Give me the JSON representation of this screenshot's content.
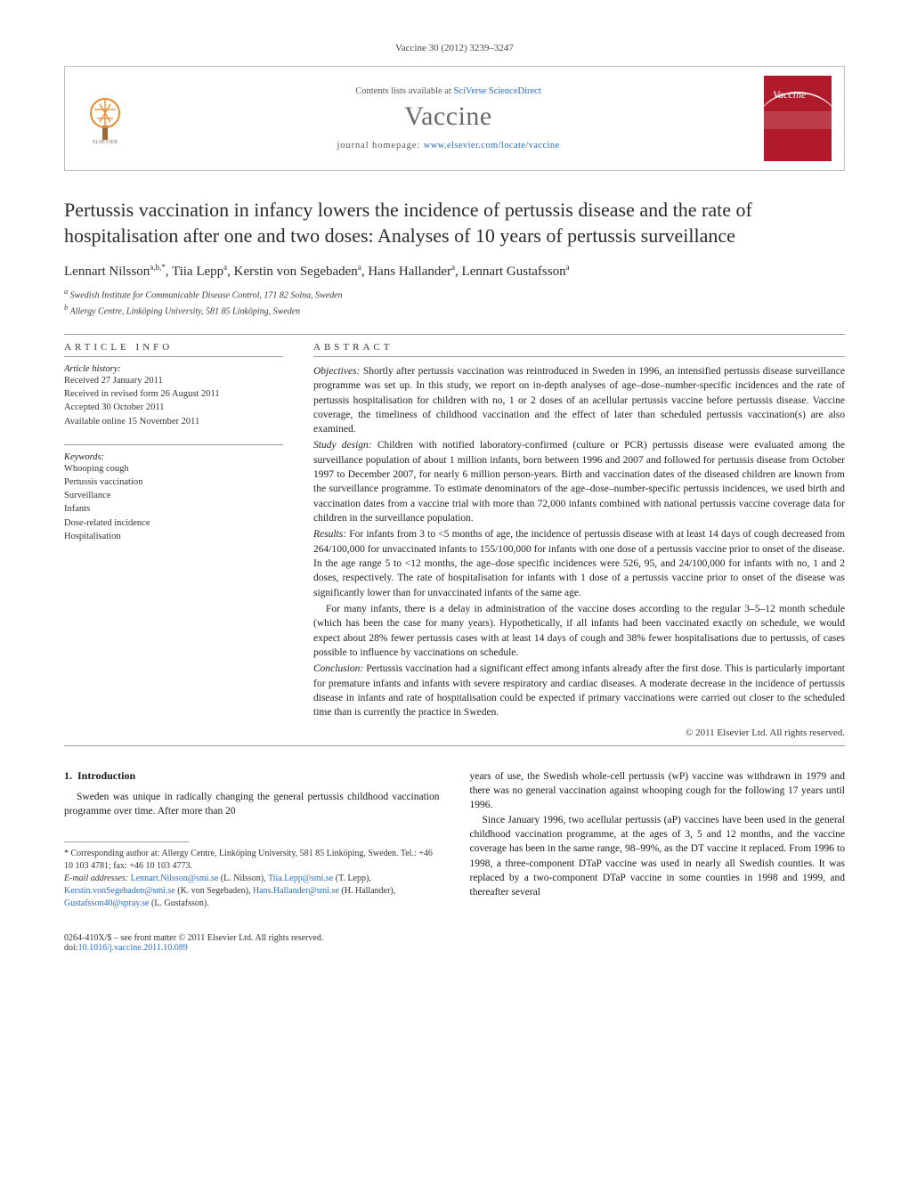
{
  "running_head": "Vaccine 30 (2012) 3239–3247",
  "masthead": {
    "contents_prefix": "Contents lists available at ",
    "contents_link": "SciVerse ScienceDirect",
    "journal": "Vaccine",
    "homepage_prefix": "journal homepage: ",
    "homepage_url": "www.elsevier.com/locate/vaccine",
    "publisher_label": "ELSEVIER",
    "cover_title": "Vaccine"
  },
  "title": "Pertussis vaccination in infancy lowers the incidence of pertussis disease and the rate of hospitalisation after one and two doses: Analyses of 10 years of pertussis surveillance",
  "authors_html": "Lennart Nilsson<sup>a,b,*</sup>, Tiia Lepp<sup>a</sup>, Kerstin von Segebaden<sup>a</sup>, Hans Hallander<sup>a</sup>, Lennart Gustafsson<sup>a</sup>",
  "affiliations": [
    "a Swedish Institute for Communicable Disease Control, 171 82 Solna, Sweden",
    "b Allergy Centre, Linköping University, 581 85 Linköping, Sweden"
  ],
  "info": {
    "header": "ARTICLE INFO",
    "history_label": "Article history:",
    "history": [
      "Received 27 January 2011",
      "Received in revised form 26 August 2011",
      "Accepted 30 October 2011",
      "Available online 15 November 2011"
    ],
    "keywords_label": "Keywords:",
    "keywords": [
      "Whooping cough",
      "Pertussis vaccination",
      "Surveillance",
      "Infants",
      "Dose-related incidence",
      "Hospitalisation"
    ]
  },
  "abstract": {
    "header": "ABSTRACT",
    "objectives_label": "Objectives:",
    "objectives": "Shortly after pertussis vaccination was reintroduced in Sweden in 1996, an intensified pertussis disease surveillance programme was set up. In this study, we report on in-depth analyses of age–dose–number-specific incidences and the rate of pertussis hospitalisation for children with no, 1 or 2 doses of an acellular pertussis vaccine before pertussis disease. Vaccine coverage, the timeliness of childhood vaccination and the effect of later than scheduled pertussis vaccination(s) are also examined.",
    "design_label": "Study design:",
    "design": "Children with notified laboratory-confirmed (culture or PCR) pertussis disease were evaluated among the surveillance population of about 1 million infants, born between 1996 and 2007 and followed for pertussis disease from October 1997 to December 2007, for nearly 6 million person-years. Birth and vaccination dates of the diseased children are known from the surveillance programme. To estimate denominators of the age–dose–number-specific pertussis incidences, we used birth and vaccination dates from a vaccine trial with more than 72,000 infants combined with national pertussis vaccine coverage data for children in the surveillance population.",
    "results_label": "Results:",
    "results_p1": "For infants from 3 to <5 months of age, the incidence of pertussis disease with at least 14 days of cough decreased from 264/100,000 for unvaccinated infants to 155/100,000 for infants with one dose of a pertussis vaccine prior to onset of the disease. In the age range 5 to <12 months, the age–dose specific incidences were 526, 95, and 24/100,000 for infants with no, 1 and 2 doses, respectively. The rate of hospitalisation for infants with 1 dose of a pertussis vaccine prior to onset of the disease was significantly lower than for unvaccinated infants of the same age.",
    "results_p2": "For many infants, there is a delay in administration of the vaccine doses according to the regular 3–5–12 month schedule (which has been the case for many years). Hypothetically, if all infants had been vaccinated exactly on schedule, we would expect about 28% fewer pertussis cases with at least 14 days of cough and 38% fewer hospitalisations due to pertussis, of cases possible to influence by vaccinations on schedule.",
    "conclusion_label": "Conclusion:",
    "conclusion": "Pertussis vaccination had a significant effect among infants already after the first dose. This is particularly important for premature infants and infants with severe respiratory and cardiac diseases. A moderate decrease in the incidence of pertussis disease in infants and rate of hospitalisation could be expected if primary vaccinations were carried out closer to the scheduled time than is currently the practice in Sweden.",
    "copyright": "© 2011 Elsevier Ltd. All rights reserved."
  },
  "body": {
    "section_number": "1.",
    "section_title": "Introduction",
    "col1_p1": "Sweden was unique in radically changing the general pertussis childhood vaccination programme over time. After more than 20",
    "col2_p1": "years of use, the Swedish whole-cell pertussis (wP) vaccine was withdrawn in 1979 and there was no general vaccination against whooping cough for the following 17 years until 1996.",
    "col2_p2": "Since January 1996, two acellular pertussis (aP) vaccines have been used in the general childhood vaccination programme, at the ages of 3, 5 and 12 months, and the vaccine coverage has been in the same range, 98–99%, as the DT vaccine it replaced. From 1996 to 1998, a three-component DTaP vaccine was used in nearly all Swedish counties. It was replaced by a two-component DTaP vaccine in some counties in 1998 and 1999, and thereafter several"
  },
  "footnotes": {
    "corresponding": "* Corresponding author at: Allergy Centre, Linköping University, 581 85 Linköping, Sweden. Tel.: +46 10 103 4781; fax: +46 10 103 4773.",
    "emails_label": "E-mail addresses:",
    "emails": [
      {
        "addr": "Lennart.Nilsson@smi.se",
        "who": "(L. Nilsson)"
      },
      {
        "addr": "Tiia.Lepp@smi.se",
        "who": "(T. Lepp)"
      },
      {
        "addr": "Kerstin.vonSegebaden@smi.se",
        "who": "(K. von Segebaden)"
      },
      {
        "addr": "Hans.Hallander@smi.se",
        "who": "(H. Hallander)"
      },
      {
        "addr": "Gustafsson40@spray.se",
        "who": "(L. Gustafsson)"
      }
    ]
  },
  "footline": {
    "left1": "0264-410X/$ – see front matter © 2011 Elsevier Ltd. All rights reserved.",
    "left2_prefix": "doi:",
    "doi": "10.1016/j.vaccine.2011.10.089"
  },
  "colors": {
    "link": "#2a6dbf",
    "cover_bg": "#b01a2b",
    "rule": "#9a9a9a",
    "tree": "#e68a2e"
  }
}
